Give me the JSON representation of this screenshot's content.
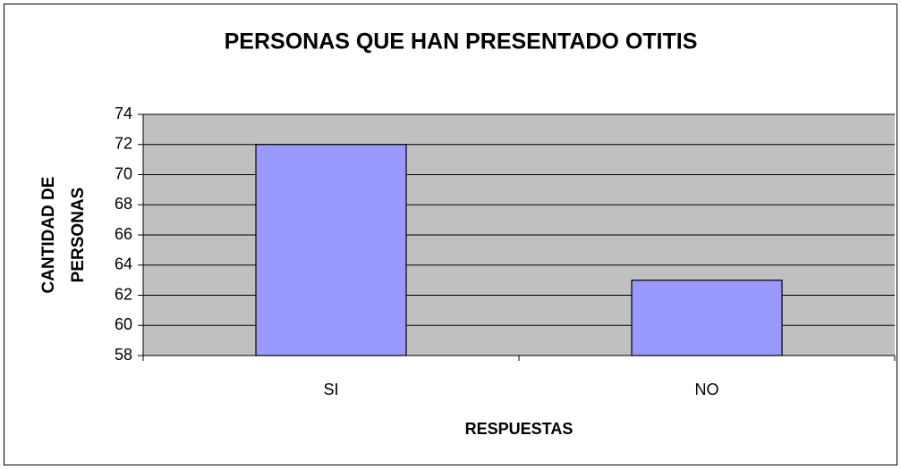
{
  "chart_data": {
    "type": "bar",
    "title": "PERSONAS QUE HAN PRESENTADO OTITIS",
    "xlabel": "RESPUESTAS",
    "ylabel": [
      "CANTIDAD DE",
      "PERSONAS"
    ],
    "categories": [
      "SI",
      "NO"
    ],
    "values": [
      72,
      63
    ],
    "color": "#9999ff",
    "ylim": [
      58,
      74
    ],
    "yticks": [
      58,
      60,
      62,
      64,
      66,
      68,
      70,
      72,
      74
    ],
    "grid": true
  }
}
